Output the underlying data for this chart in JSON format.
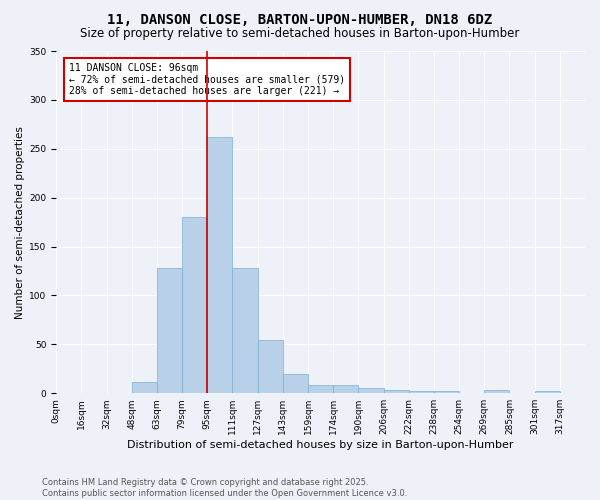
{
  "title": "11, DANSON CLOSE, BARTON-UPON-HUMBER, DN18 6DZ",
  "subtitle": "Size of property relative to semi-detached houses in Barton-upon-Humber",
  "xlabel": "Distribution of semi-detached houses by size in Barton-upon-Humber",
  "ylabel": "Number of semi-detached properties",
  "bin_labels": [
    "0sqm",
    "16sqm",
    "32sqm",
    "48sqm",
    "63sqm",
    "79sqm",
    "95sqm",
    "111sqm",
    "127sqm",
    "143sqm",
    "159sqm",
    "174sqm",
    "190sqm",
    "206sqm",
    "222sqm",
    "238sqm",
    "254sqm",
    "269sqm",
    "285sqm",
    "301sqm",
    "317sqm"
  ],
  "bar_heights": [
    0,
    0,
    0,
    11,
    128,
    180,
    262,
    128,
    54,
    20,
    8,
    8,
    5,
    3,
    2,
    2,
    0,
    3,
    0,
    2,
    0
  ],
  "bar_color": "#b8d0e8",
  "bar_edgecolor": "#7aafd4",
  "property_line_index": 6,
  "property_line_color": "#cc0000",
  "annotation_text": "11 DANSON CLOSE: 96sqm\n← 72% of semi-detached houses are smaller (579)\n28% of semi-detached houses are larger (221) →",
  "annotation_box_color": "#ffffff",
  "annotation_box_edgecolor": "#cc0000",
  "ylim": [
    0,
    350
  ],
  "yticks": [
    0,
    50,
    100,
    150,
    200,
    250,
    300,
    350
  ],
  "background_color": "#eef2f8",
  "axes_background": "#eef2f8",
  "grid_color": "#ffffff",
  "footer_text": "Contains HM Land Registry data © Crown copyright and database right 2025.\nContains public sector information licensed under the Open Government Licence v3.0.",
  "title_fontsize": 10,
  "subtitle_fontsize": 8.5,
  "xlabel_fontsize": 8,
  "ylabel_fontsize": 7.5,
  "tick_fontsize": 6.5,
  "annotation_fontsize": 7,
  "footer_fontsize": 6
}
